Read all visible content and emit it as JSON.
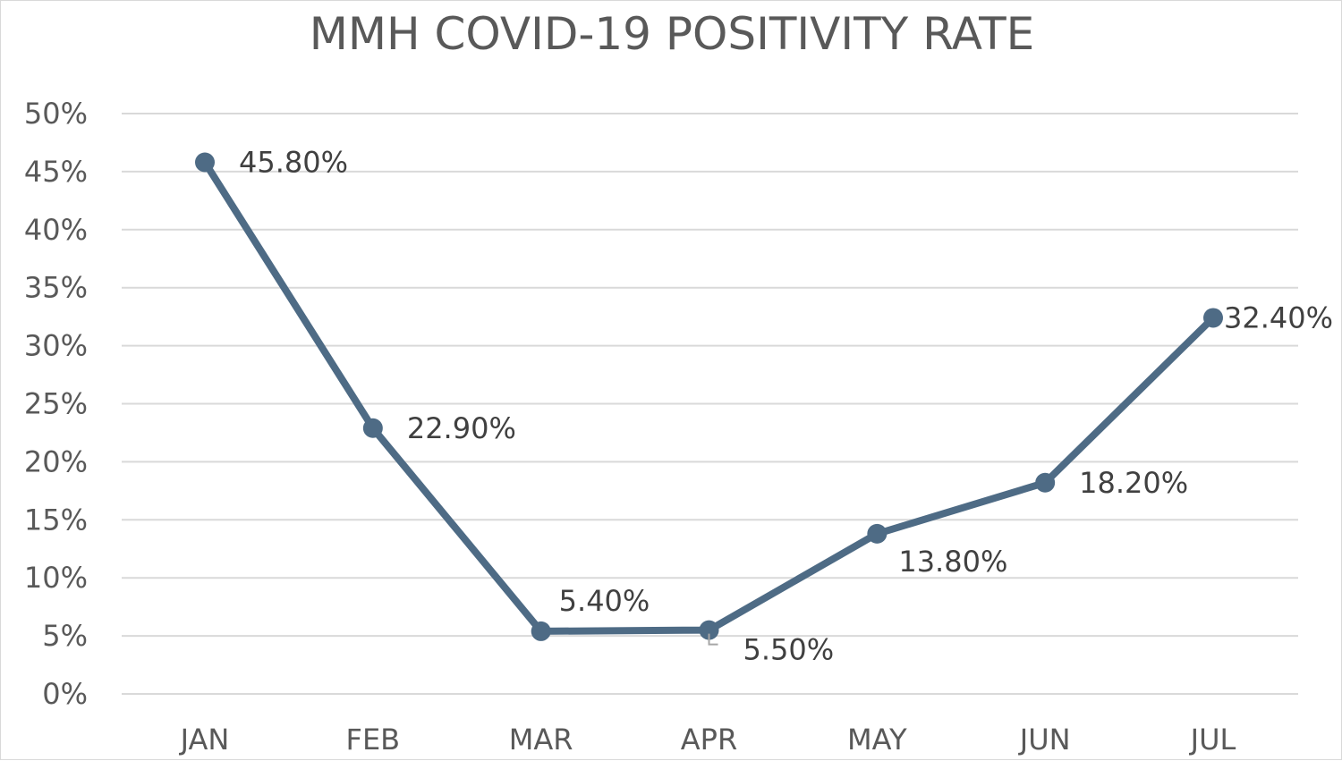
{
  "chart_data": {
    "type": "line",
    "title": "MMH COVID-19 POSITIVITY RATE",
    "xlabel": "",
    "ylabel": "",
    "categories": [
      "JAN",
      "FEB",
      "MAR",
      "APR",
      "MAY",
      "JUN",
      "JUL"
    ],
    "series": [
      {
        "values": [
          45.8,
          22.9,
          5.4,
          5.5,
          13.8,
          18.2,
          32.4
        ],
        "data_labels": [
          "45.80%",
          "22.90%",
          "5.40%",
          "5.50%",
          "13.80%",
          "18.20%",
          "32.40%"
        ],
        "color": "#4e6b85"
      }
    ],
    "ylim": [
      0,
      50
    ],
    "yticks": [
      0,
      5,
      10,
      15,
      20,
      25,
      30,
      35,
      40,
      45,
      50
    ],
    "ytick_labels": [
      "0%",
      "5%",
      "10%",
      "15%",
      "20%",
      "25%",
      "30%",
      "35%",
      "40%",
      "45%",
      "50%"
    ],
    "grid": true,
    "legend": "none"
  },
  "colors": {
    "line": "#4e6b85",
    "grid": "#d9d9d9",
    "axis_text": "#595959",
    "label_text": "#404040"
  }
}
